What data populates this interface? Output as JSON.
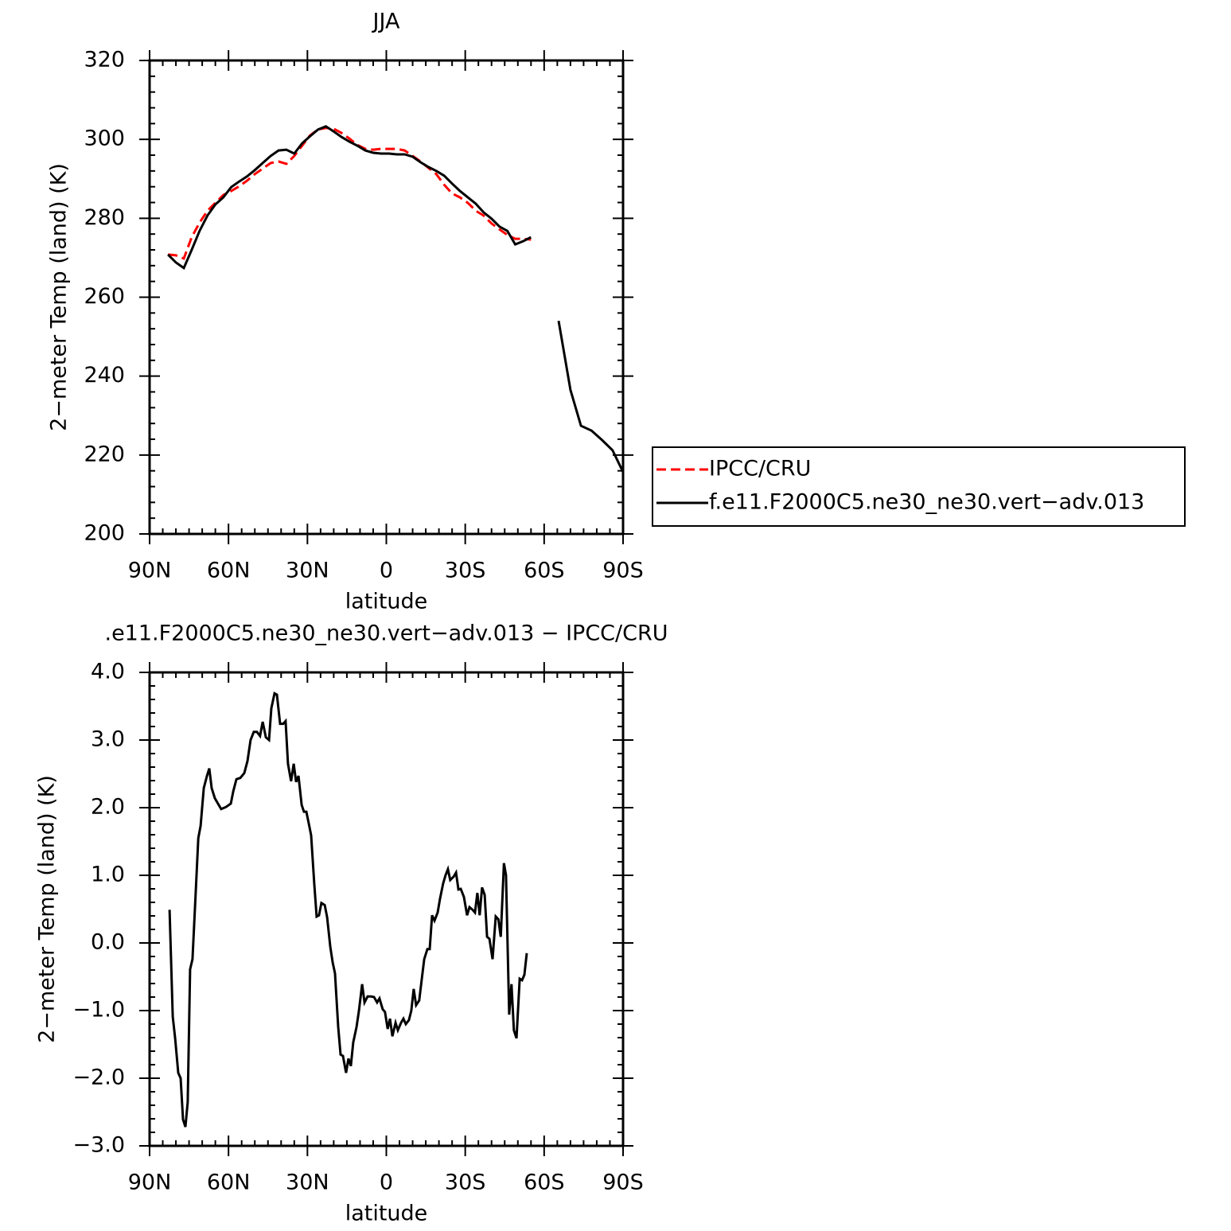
{
  "chart_data": [
    {
      "type": "line",
      "title": "JJA",
      "xlabel": "latitude",
      "ylabel": "2−meter Temp (land) (K)",
      "xlim": [
        90,
        -90
      ],
      "xticks": [
        {
          "value": 90,
          "label": "90N"
        },
        {
          "value": 60,
          "label": "60N"
        },
        {
          "value": 30,
          "label": "30N"
        },
        0,
        {
          "value": -30,
          "label": "30S"
        },
        {
          "value": -60,
          "label": "60S"
        },
        {
          "value": -90,
          "label": "90S"
        }
      ],
      "ylim": [
        200,
        320
      ],
      "yticks": [
        200,
        220,
        240,
        260,
        280,
        300,
        320
      ],
      "legend": "right",
      "x": [
        83,
        80,
        77,
        74,
        71,
        68,
        65,
        62,
        59,
        56,
        53,
        50,
        47,
        44,
        41,
        38,
        35,
        32,
        29,
        26,
        23,
        20,
        17,
        14,
        11,
        8,
        5,
        2,
        -1,
        -4,
        -7,
        -10,
        -13,
        -16,
        -19,
        -22,
        -25,
        -28,
        -31,
        -34,
        -37,
        -40,
        -43,
        -46,
        -49,
        -52,
        -55,
        -58,
        -61,
        -64,
        -65.5,
        -70,
        -74,
        -78,
        -82,
        -86,
        -90
      ],
      "series": [
        {
          "name": "IPCC/CRU",
          "color": "#ff0000",
          "style": "dashed",
          "values": [
            270.8,
            270.6,
            269.8,
            275.2,
            278.9,
            281.9,
            283.9,
            285.9,
            286.9,
            288.1,
            289.5,
            291.2,
            292.6,
            294.0,
            294.4,
            293.8,
            295.8,
            298.4,
            301.0,
            302.5,
            302.9,
            302.7,
            301.6,
            300.2,
            298.6,
            297.6,
            297.4,
            297.6,
            297.6,
            297.6,
            297.2,
            295.8,
            294.4,
            292.8,
            291.2,
            288.5,
            286.3,
            285.3,
            283.9,
            281.9,
            280.7,
            278.7,
            277.2,
            275.8,
            274.8,
            274.8,
            274.6,
            null,
            null,
            null,
            null,
            null,
            null,
            null,
            null,
            null,
            null
          ]
        },
        {
          "name": "f.e11.F2000C5.ne30_ne30.vert−adv.013",
          "color": "#000000",
          "style": "solid",
          "values": [
            270.8,
            268.8,
            267.4,
            272.0,
            276.8,
            280.7,
            283.5,
            285.3,
            287.9,
            289.3,
            290.6,
            292.2,
            294.0,
            295.8,
            297.2,
            297.4,
            296.4,
            299.0,
            300.8,
            302.5,
            303.3,
            302.0,
            300.6,
            299.4,
            298.4,
            297.2,
            296.6,
            296.4,
            296.4,
            296.2,
            296.2,
            295.6,
            294.2,
            293.0,
            292.0,
            290.8,
            288.8,
            286.9,
            285.3,
            283.7,
            281.5,
            279.9,
            277.9,
            276.8,
            273.4,
            274.2,
            275.2,
            null,
            null,
            null,
            254.0,
            236.5,
            227.4,
            226.2,
            223.8,
            221.2,
            215.7
          ]
        }
      ]
    },
    {
      "type": "line",
      "title": ".e11.F2000C5.ne30_ne30.vert−adv.013 − IPCC/CRU",
      "xlabel": "latitude",
      "ylabel": "2−meter Temp (land) (K)",
      "xlim": [
        90,
        -90
      ],
      "xticks": [
        {
          "value": 90,
          "label": "90N"
        },
        {
          "value": 60,
          "label": "60N"
        },
        {
          "value": 30,
          "label": "30N"
        },
        0,
        {
          "value": -30,
          "label": "30S"
        },
        {
          "value": -60,
          "label": "60S"
        },
        {
          "value": -90,
          "label": "90S"
        }
      ],
      "ylim": [
        -3,
        4
      ],
      "yticks": [
        {
          "value": -3,
          "label": "−3.0"
        },
        {
          "value": -2,
          "label": "−2.0"
        },
        {
          "value": -1,
          "label": "−1.0"
        },
        {
          "value": 0,
          "label": "0.0"
        },
        {
          "value": 1,
          "label": "1.0"
        },
        {
          "value": 2,
          "label": "2.0"
        },
        {
          "value": 3,
          "label": "3.0"
        },
        {
          "value": 4,
          "label": "4.0"
        }
      ],
      "x": [
        82.4,
        81.2,
        80.3,
        79.1,
        78.2,
        77.3,
        76.4,
        75.5,
        74.6,
        73.7,
        72.5,
        71.5,
        70.6,
        69.4,
        68.2,
        67.3,
        66.4,
        65.2,
        64.0,
        62.8,
        61.0,
        59.1,
        58.2,
        57.0,
        55.5,
        54.0,
        52.8,
        51.6,
        50.4,
        49.2,
        48.0,
        47.0,
        45.8,
        44.6,
        43.7,
        42.5,
        41.6,
        40.4,
        39.2,
        38.3,
        37.4,
        36.2,
        35.2,
        34.3,
        33.4,
        32.2,
        31.3,
        30.4,
        29.2,
        28.6,
        27.4,
        26.5,
        25.6,
        24.7,
        23.4,
        22.5,
        21.3,
        20.4,
        19.5,
        18.3,
        17.4,
        16.5,
        15.3,
        14.4,
        13.5,
        12.6,
        11.3,
        10.4,
        9.2,
        8.3,
        7.1,
        5.9,
        4.7,
        3.5,
        2.6,
        1.4,
        0.5,
        -0.5,
        -1.4,
        -2.3,
        -3.5,
        -4.4,
        -5.6,
        -6.5,
        -7.4,
        -8.6,
        -9.5,
        -10.4,
        -11.3,
        -12.5,
        -13.5,
        -14.4,
        -15.6,
        -16.5,
        -17.4,
        -18.3,
        -19.5,
        -20.4,
        -21.6,
        -22.5,
        -23.4,
        -24.3,
        -25.6,
        -26.5,
        -27.4,
        -28.3,
        -29.5,
        -30.7,
        -31.6,
        -32.8,
        -33.7,
        -34.6,
        -35.5,
        -36.4,
        -37.4,
        -38.3,
        -39.2,
        -40.4,
        -41.6,
        -42.6,
        -43.5,
        -44.7,
        -45.5,
        -46.7,
        -47.6,
        -48.5,
        -49.5,
        -50.7,
        -51.6,
        -52.5,
        -53.4
      ],
      "color": "#000000",
      "values": [
        0.49,
        -1.09,
        -1.41,
        -1.92,
        -2.0,
        -2.61,
        -2.72,
        -2.35,
        -0.39,
        -0.24,
        0.71,
        1.55,
        1.73,
        2.29,
        2.47,
        2.58,
        2.29,
        2.14,
        2.06,
        1.98,
        2.01,
        2.06,
        2.24,
        2.42,
        2.44,
        2.51,
        2.69,
        3.0,
        3.12,
        3.12,
        3.06,
        3.27,
        3.04,
        3.0,
        3.47,
        3.69,
        3.67,
        3.24,
        3.24,
        3.28,
        2.65,
        2.39,
        2.65,
        2.38,
        2.47,
        2.04,
        1.94,
        1.94,
        1.71,
        1.59,
        0.88,
        0.39,
        0.41,
        0.59,
        0.56,
        0.38,
        -0.06,
        -0.29,
        -0.45,
        -1.24,
        -1.65,
        -1.67,
        -1.92,
        -1.71,
        -1.82,
        -1.47,
        -1.24,
        -1.0,
        -0.61,
        -0.88,
        -0.79,
        -0.79,
        -0.8,
        -0.88,
        -0.82,
        -0.98,
        -1.02,
        -1.27,
        -1.12,
        -1.38,
        -1.18,
        -1.29,
        -1.18,
        -1.12,
        -1.2,
        -1.14,
        -1.0,
        -0.68,
        -0.92,
        -0.85,
        -0.53,
        -0.24,
        -0.09,
        -0.09,
        0.41,
        0.33,
        0.45,
        0.65,
        0.88,
        1.0,
        1.09,
        0.93,
        0.98,
        1.04,
        0.79,
        0.8,
        0.68,
        0.41,
        0.53,
        0.49,
        0.45,
        0.74,
        0.41,
        0.82,
        0.71,
        0.09,
        0.06,
        -0.24,
        0.39,
        0.35,
        0.09,
        1.18,
        1.0,
        -1.06,
        -0.61,
        -1.29,
        -1.41,
        -0.53,
        -0.55,
        -0.47,
        -0.15
      ]
    }
  ]
}
